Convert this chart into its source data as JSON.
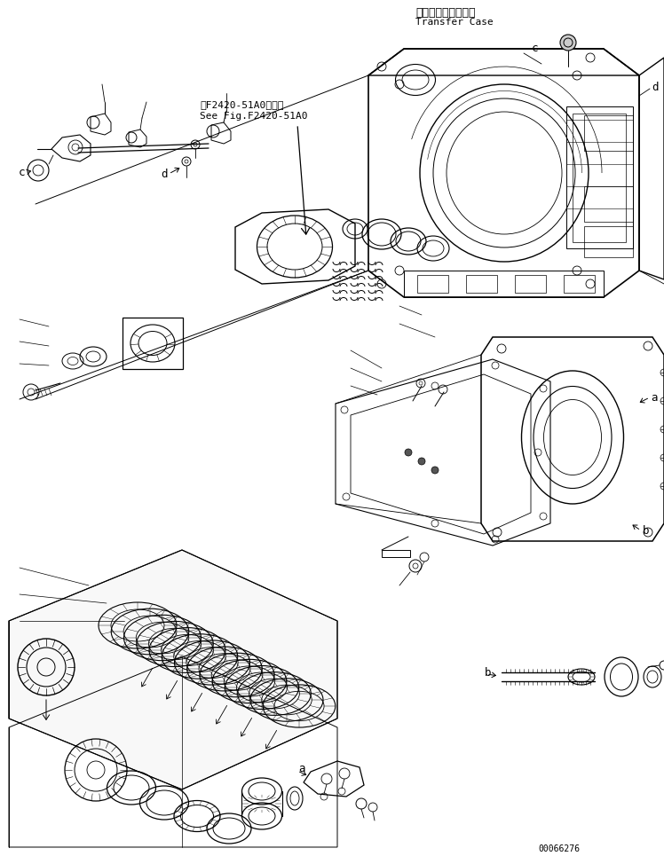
{
  "title_japanese": "トランスファケース",
  "title_english": "Transfer Case",
  "ref_japanese": "第F2420-51A0図参照",
  "ref_english": "See Fig.F2420-51A0",
  "part_number": "00066276",
  "bg_color": "#ffffff",
  "line_color": "#000000",
  "text_color": "#000000",
  "figsize": [
    7.48,
    9.65
  ],
  "dpi": 100
}
